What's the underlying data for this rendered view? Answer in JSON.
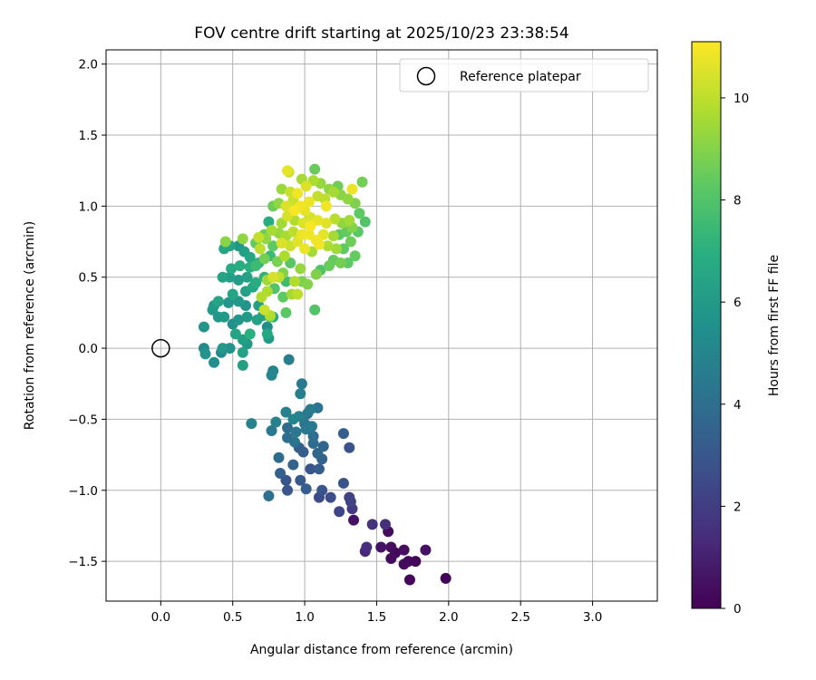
{
  "chart_data": {
    "type": "scatter",
    "title": "FOV centre drift starting at 2025/10/23 23:38:54",
    "xlabel": "Angular distance from reference (arcmin)",
    "ylabel": "Rotation from reference (arcmin)",
    "xlim": [
      -0.38,
      3.45
    ],
    "ylim": [
      -1.78,
      2.1
    ],
    "xticks": [
      0.0,
      0.5,
      1.0,
      1.5,
      2.0,
      2.5,
      3.0
    ],
    "xtick_labels": [
      "0.0",
      "0.5",
      "1.0",
      "1.5",
      "2.0",
      "2.5",
      "3.0"
    ],
    "yticks": [
      -1.5,
      -1.0,
      -0.5,
      0.0,
      0.5,
      1.0,
      1.5,
      2.0
    ],
    "ytick_labels": [
      "−1.5",
      "−1.0",
      "−0.5",
      "0.0",
      "0.5",
      "1.0",
      "1.5",
      "2.0"
    ],
    "grid": true,
    "legend": {
      "location": "top-right",
      "entries": [
        "Reference platepar"
      ]
    },
    "reference_point": {
      "x": 0.0,
      "y": 0.0,
      "label": "Reference platepar"
    },
    "colorbar": {
      "label": "Hours from first FF file",
      "range": [
        0,
        11.1
      ],
      "ticks": [
        0,
        2,
        4,
        6,
        8,
        10
      ],
      "tick_labels": [
        "0",
        "2",
        "4",
        "6",
        "8",
        "10"
      ],
      "colormap": "viridis"
    },
    "series": [
      {
        "name": "FOV centre drift",
        "points": [
          [
            1.98,
            -1.62,
            0.1
          ],
          [
            1.73,
            -1.63,
            0.2
          ],
          [
            1.69,
            -1.52,
            0.3
          ],
          [
            1.72,
            -1.5,
            0.2
          ],
          [
            1.77,
            -1.5,
            0.1
          ],
          [
            1.84,
            -1.42,
            0.5
          ],
          [
            1.69,
            -1.42,
            0.4
          ],
          [
            1.63,
            -1.44,
            0.2
          ],
          [
            1.6,
            -1.48,
            0.3
          ],
          [
            1.6,
            -1.4,
            0.4
          ],
          [
            1.53,
            -1.4,
            0.5
          ],
          [
            1.42,
            -1.43,
            1.2
          ],
          [
            1.43,
            -1.4,
            1.4
          ],
          [
            1.47,
            -1.24,
            1.6
          ],
          [
            1.56,
            -1.24,
            1.5
          ],
          [
            1.58,
            -1.29,
            0.3
          ],
          [
            1.34,
            -1.21,
            0.5
          ],
          [
            1.33,
            -1.13,
            1.9
          ],
          [
            1.24,
            -1.15,
            2.3
          ],
          [
            1.32,
            -1.08,
            2.2
          ],
          [
            1.31,
            -1.05,
            2.1
          ],
          [
            1.18,
            -1.05,
            2.6
          ],
          [
            1.12,
            -1.0,
            2.8
          ],
          [
            1.1,
            -1.05,
            2.5
          ],
          [
            1.27,
            -0.95,
            2.8
          ],
          [
            1.01,
            -0.99,
            3.3
          ],
          [
            0.88,
            -1.0,
            3.0
          ],
          [
            0.97,
            -0.93,
            3.1
          ],
          [
            0.87,
            -0.93,
            2.9
          ],
          [
            0.83,
            -0.88,
            3.4
          ],
          [
            0.75,
            -1.04,
            4.1
          ],
          [
            0.82,
            -0.77,
            3.8
          ],
          [
            0.92,
            -0.82,
            3.5
          ],
          [
            1.04,
            -0.85,
            2.9
          ],
          [
            1.1,
            -0.85,
            3.2
          ],
          [
            1.12,
            -0.78,
            3.5
          ],
          [
            1.09,
            -0.74,
            3.7
          ],
          [
            1.13,
            -0.69,
            3.6
          ],
          [
            1.31,
            -0.7,
            2.9
          ],
          [
            1.27,
            -0.6,
            3.3
          ],
          [
            1.06,
            -0.62,
            4.0
          ],
          [
            1.06,
            -0.67,
            3.9
          ],
          [
            0.99,
            -0.73,
            3.3
          ],
          [
            0.96,
            -0.7,
            3.3
          ],
          [
            0.93,
            -0.66,
            4.2
          ],
          [
            0.88,
            -0.63,
            4.0
          ],
          [
            0.94,
            -0.59,
            4.4
          ],
          [
            0.88,
            -0.56,
            3.8
          ],
          [
            1.01,
            -0.57,
            4.4
          ],
          [
            1.0,
            -0.53,
            4.3
          ],
          [
            1.05,
            -0.55,
            4.5
          ],
          [
            1.04,
            -0.43,
            4.6
          ],
          [
            1.09,
            -0.42,
            4.3
          ],
          [
            1.02,
            -0.46,
            4.4
          ],
          [
            0.96,
            -0.48,
            4.8
          ],
          [
            0.92,
            -0.5,
            5.0
          ],
          [
            0.87,
            -0.45,
            4.8
          ],
          [
            0.8,
            -0.52,
            4.9
          ],
          [
            0.77,
            -0.58,
            4.5
          ],
          [
            0.63,
            -0.53,
            4.9
          ],
          [
            0.97,
            -0.32,
            4.7
          ],
          [
            0.98,
            -0.25,
            4.5
          ],
          [
            0.78,
            -0.16,
            4.9
          ],
          [
            0.77,
            -0.19,
            5.1
          ],
          [
            0.89,
            -0.08,
            4.7
          ],
          [
            0.57,
            -0.12,
            6.2
          ],
          [
            0.37,
            -0.1,
            5.5
          ],
          [
            0.42,
            -0.03,
            5.2
          ],
          [
            0.43,
            0.0,
            5.9
          ],
          [
            0.3,
            0.0,
            5.3
          ],
          [
            0.31,
            -0.04,
            5.7
          ],
          [
            0.48,
            0.0,
            5.6
          ],
          [
            0.57,
            -0.03,
            6.3
          ],
          [
            0.6,
            0.03,
            5.9
          ],
          [
            0.57,
            0.06,
            6.2
          ],
          [
            0.52,
            0.1,
            6.4
          ],
          [
            0.62,
            0.1,
            7.0
          ],
          [
            0.74,
            0.1,
            6.6
          ],
          [
            0.75,
            0.07,
            5.9
          ],
          [
            0.74,
            0.15,
            5.4
          ],
          [
            0.3,
            0.15,
            5.8
          ],
          [
            0.4,
            0.22,
            5.8
          ],
          [
            0.36,
            0.27,
            6.0
          ],
          [
            0.44,
            0.22,
            6.0
          ],
          [
            0.5,
            0.17,
            5.5
          ],
          [
            0.54,
            0.2,
            5.8
          ],
          [
            0.6,
            0.22,
            6.0
          ],
          [
            0.67,
            0.2,
            6.3
          ],
          [
            0.71,
            0.23,
            6.2
          ],
          [
            0.78,
            0.22,
            6.8
          ],
          [
            0.76,
            0.23,
            9.8
          ],
          [
            0.76,
            0.22,
            8.2
          ],
          [
            0.72,
            0.27,
            10.2
          ],
          [
            0.87,
            0.25,
            8.2
          ],
          [
            1.07,
            0.27,
            8.0
          ],
          [
            0.68,
            0.3,
            6.2
          ],
          [
            0.59,
            0.3,
            5.7
          ],
          [
            0.54,
            0.33,
            6.0
          ],
          [
            0.47,
            0.32,
            5.8
          ],
          [
            0.4,
            0.33,
            6.4
          ],
          [
            0.37,
            0.3,
            6.0
          ],
          [
            0.5,
            0.38,
            6.5
          ],
          [
            0.59,
            0.4,
            6.3
          ],
          [
            0.64,
            0.43,
            6.6
          ],
          [
            0.7,
            0.36,
            9.8
          ],
          [
            0.74,
            0.4,
            9.7
          ],
          [
            0.79,
            0.42,
            8.0
          ],
          [
            0.85,
            0.36,
            8.3
          ],
          [
            0.91,
            0.38,
            9.6
          ],
          [
            0.95,
            0.38,
            10.0
          ],
          [
            0.66,
            0.46,
            6.8
          ],
          [
            0.6,
            0.5,
            6.3
          ],
          [
            0.54,
            0.48,
            6.1
          ],
          [
            0.48,
            0.5,
            6.2
          ],
          [
            0.43,
            0.5,
            6.4
          ],
          [
            0.49,
            0.56,
            6.7
          ],
          [
            0.55,
            0.58,
            6.9
          ],
          [
            0.62,
            0.57,
            7.0
          ],
          [
            0.66,
            0.58,
            7.5
          ],
          [
            0.72,
            0.5,
            7.2
          ],
          [
            0.74,
            0.48,
            9.5
          ],
          [
            0.78,
            0.5,
            10.4
          ],
          [
            0.82,
            0.5,
            10.1
          ],
          [
            0.85,
            0.53,
            9.0
          ],
          [
            0.87,
            0.47,
            7.6
          ],
          [
            0.93,
            0.47,
            9.8
          ],
          [
            0.98,
            0.47,
            8.8
          ],
          [
            1.02,
            0.45,
            9.0
          ],
          [
            1.08,
            0.52,
            8.9
          ],
          [
            1.11,
            0.55,
            8.0
          ],
          [
            1.17,
            0.58,
            8.5
          ],
          [
            1.2,
            0.62,
            8.4
          ],
          [
            1.25,
            0.6,
            8.7
          ],
          [
            1.3,
            0.6,
            8.3
          ],
          [
            1.35,
            0.65,
            8.4
          ],
          [
            0.97,
            0.56,
            9.3
          ],
          [
            0.9,
            0.6,
            8.2
          ],
          [
            0.86,
            0.65,
            9.7
          ],
          [
            0.81,
            0.61,
            8.8
          ],
          [
            0.76,
            0.65,
            7.5
          ],
          [
            0.72,
            0.63,
            8.7
          ],
          [
            0.68,
            0.6,
            7.1
          ],
          [
            0.62,
            0.64,
            6.5
          ],
          [
            0.58,
            0.68,
            6.2
          ],
          [
            0.54,
            0.72,
            5.9
          ],
          [
            0.48,
            0.72,
            6.5
          ],
          [
            0.44,
            0.7,
            6.6
          ],
          [
            0.45,
            0.75,
            9.1
          ],
          [
            0.57,
            0.77,
            9.2
          ],
          [
            0.66,
            0.74,
            8.4
          ],
          [
            0.69,
            0.7,
            10.0
          ],
          [
            0.73,
            0.77,
            9.2
          ],
          [
            0.78,
            0.72,
            8.3
          ],
          [
            0.84,
            0.74,
            10.5
          ],
          [
            0.9,
            0.72,
            10.2
          ],
          [
            0.95,
            0.75,
            10.6
          ],
          [
            1.0,
            0.7,
            10.8
          ],
          [
            1.05,
            0.68,
            9.6
          ],
          [
            1.1,
            0.73,
            10.9
          ],
          [
            1.16,
            0.72,
            9.7
          ],
          [
            1.22,
            0.7,
            9.5
          ],
          [
            1.27,
            0.7,
            8.3
          ],
          [
            1.32,
            0.75,
            8.6
          ],
          [
            1.37,
            0.82,
            8.2
          ],
          [
            1.33,
            0.85,
            9.0
          ],
          [
            1.29,
            0.82,
            8.4
          ],
          [
            1.24,
            0.8,
            8.2
          ],
          [
            1.2,
            0.79,
            9.6
          ],
          [
            1.13,
            0.8,
            10.7
          ],
          [
            1.08,
            0.76,
            10.9
          ],
          [
            1.03,
            0.8,
            10.9
          ],
          [
            0.98,
            0.8,
            10.8
          ],
          [
            0.92,
            0.82,
            10.0
          ],
          [
            0.87,
            0.79,
            9.6
          ],
          [
            0.82,
            0.81,
            9.3
          ],
          [
            0.77,
            0.83,
            9.6
          ],
          [
            0.72,
            0.8,
            8.5
          ],
          [
            0.68,
            0.78,
            10.1
          ],
          [
            0.75,
            0.89,
            6.8
          ],
          [
            0.84,
            0.88,
            9.5
          ],
          [
            0.88,
            0.93,
            10.4
          ],
          [
            0.93,
            0.9,
            9.8
          ],
          [
            0.99,
            0.88,
            10.5
          ],
          [
            1.04,
            0.92,
            10.4
          ],
          [
            1.09,
            0.9,
            10.7
          ],
          [
            1.15,
            0.88,
            10.6
          ],
          [
            1.21,
            0.91,
            9.9
          ],
          [
            1.26,
            0.88,
            9.2
          ],
          [
            1.31,
            0.9,
            9.5
          ],
          [
            1.38,
            0.95,
            8.3
          ],
          [
            1.42,
            0.89,
            8.0
          ],
          [
            1.35,
            1.02,
            8.9
          ],
          [
            1.3,
            1.05,
            9.2
          ],
          [
            1.25,
            1.08,
            9.1
          ],
          [
            1.2,
            1.1,
            9.6
          ],
          [
            1.14,
            1.05,
            10.0
          ],
          [
            1.09,
            1.07,
            10.1
          ],
          [
            1.03,
            1.03,
            10.8
          ],
          [
            0.97,
            1.0,
            10.9
          ],
          [
            0.92,
            1.04,
            10.2
          ],
          [
            0.87,
            1.0,
            10.5
          ],
          [
            0.82,
            1.02,
            9.2
          ],
          [
            0.78,
            1.0,
            8.6
          ],
          [
            0.84,
            1.12,
            9.4
          ],
          [
            0.9,
            1.1,
            10.2
          ],
          [
            0.95,
            1.09,
            10.9
          ],
          [
            1.01,
            1.14,
            10.5
          ],
          [
            1.06,
            1.18,
            9.7
          ],
          [
            1.11,
            1.16,
            9.3
          ],
          [
            1.17,
            1.12,
            9.2
          ],
          [
            1.23,
            1.14,
            8.6
          ],
          [
            1.33,
            1.12,
            10.8
          ],
          [
            1.4,
            1.17,
            8.7
          ],
          [
            1.07,
            1.26,
            8.5
          ],
          [
            0.98,
            1.19,
            9.6
          ],
          [
            0.88,
            1.25,
            10.7
          ],
          [
            0.89,
            1.24,
            10.1
          ],
          [
            1.15,
            1.0,
            10.9
          ],
          [
            1.0,
            0.97,
            10.7
          ],
          [
            0.93,
            0.97,
            11.0
          ],
          [
            1.04,
            0.86,
            11.0
          ]
        ]
      }
    ]
  }
}
